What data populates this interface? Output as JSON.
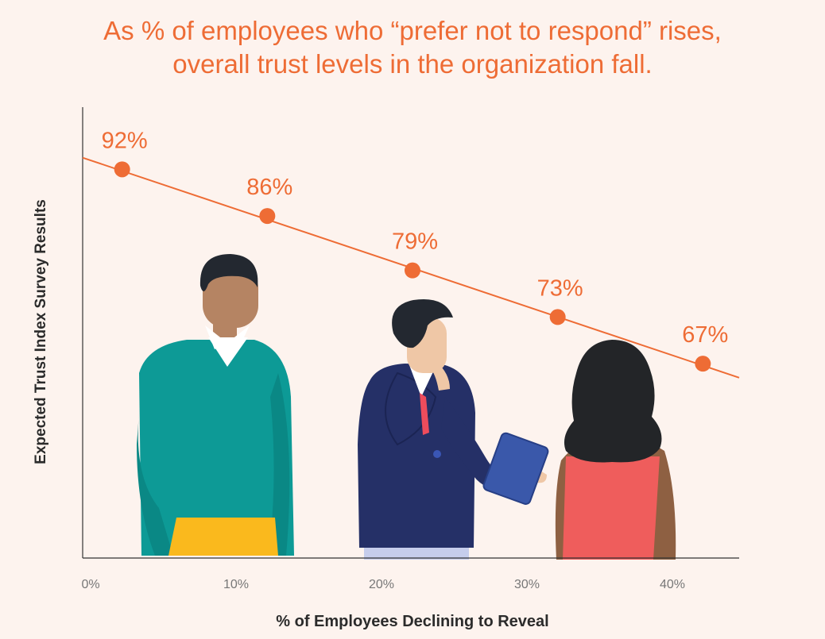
{
  "title": {
    "line1": "As % of employees who “prefer not to respond” rises,",
    "line2": "overall trust levels in the organization fall."
  },
  "colors": {
    "accent": "#ee6c35",
    "background": "#fdf3ee",
    "axis": "#333333",
    "tick_text": "#777777"
  },
  "illustration": [
    "person-teal-sweater",
    "person-navy-blazer-holding-tablet",
    "person-long-hair-back-view"
  ],
  "chart_data": {
    "type": "line",
    "title": "As % of employees who “prefer not to respond” rises, overall trust levels in the organization fall.",
    "xlabel": "% of Employees Declining to Reveal",
    "ylabel": "Expected Trust Index Survey Results",
    "x_ticks": [
      "0%",
      "10%",
      "20%",
      "30%",
      "40%"
    ],
    "xlim": [
      0,
      45
    ],
    "ylim": [
      42,
      100
    ],
    "series": [
      {
        "x": [
          2.5,
          12.5,
          22.5,
          32.5,
          42.5
        ],
        "values": [
          92,
          86,
          79,
          73,
          67
        ],
        "labels": [
          "92%",
          "86%",
          "79%",
          "73%",
          "67%"
        ]
      }
    ],
    "trend_line": {
      "x": [
        0,
        45
      ],
      "y": [
        93.5,
        65.2
      ]
    },
    "grid": false,
    "legend": "none"
  }
}
